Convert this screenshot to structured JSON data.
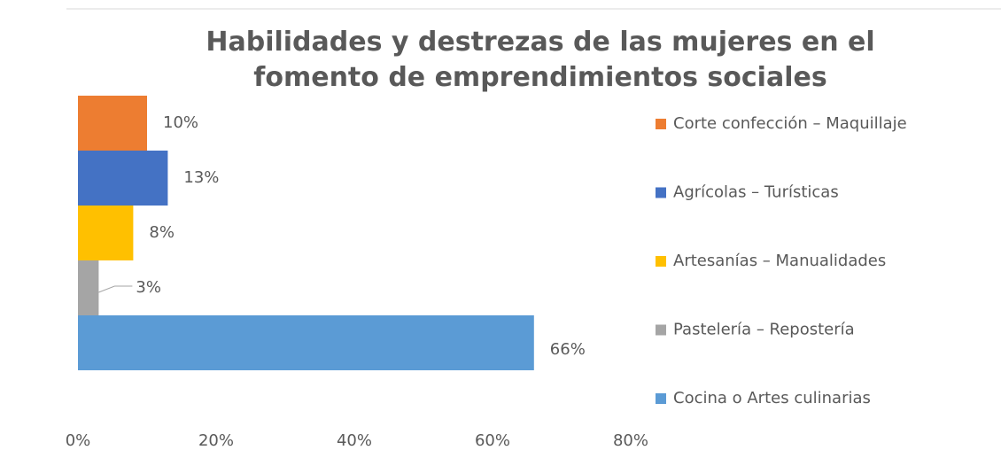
{
  "chart_data": {
    "type": "bar",
    "orientation": "horizontal",
    "title": "Habilidades y destrezas de las mujeres en el fomento de emprendimientos sociales",
    "categories": [
      "Corte confección – Maquillaje",
      "Agrícolas – Turísticas",
      "Artesanías – Manualidades",
      "Pastelería – Repostería",
      "Cocina o Artes culinarias"
    ],
    "values": [
      10,
      13,
      8,
      3,
      66
    ],
    "value_labels": [
      "10%",
      "13%",
      "8%",
      "3%",
      "66%"
    ],
    "colors": [
      "#ed7d31",
      "#4472c4",
      "#ffc000",
      "#a5a5a5",
      "#5b9bd5"
    ],
    "xlim": [
      0,
      80
    ],
    "xticks": [
      {
        "value": 0,
        "label": "0%"
      },
      {
        "value": 20,
        "label": "20%"
      },
      {
        "value": 40,
        "label": "40%"
      },
      {
        "value": 60,
        "label": "60%"
      },
      {
        "value": 80,
        "label": "80%"
      }
    ],
    "grid": false,
    "legend": "right"
  }
}
